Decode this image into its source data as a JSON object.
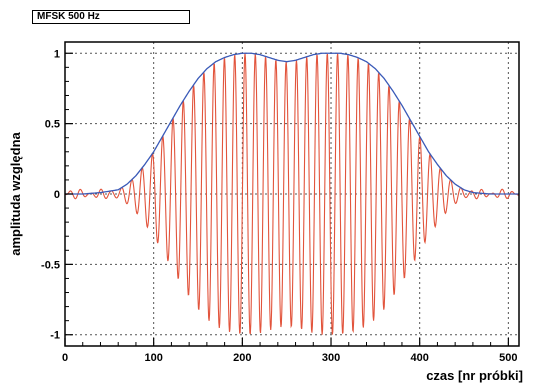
{
  "chart_data": {
    "type": "line",
    "title": "MFSK 500 Hz",
    "xlabel": "czas [nr próbki]",
    "ylabel": "amplituda względna",
    "xlim": [
      0,
      512
    ],
    "ylim": [
      -1.08,
      1.08
    ],
    "x_ticks": [
      0,
      100,
      200,
      300,
      400,
      500
    ],
    "y_ticks": [
      -1,
      -0.5,
      0,
      0.5,
      1
    ],
    "y_tick_labels": [
      "-1",
      "-0.5",
      "0",
      "0.5",
      "1"
    ],
    "grid": true,
    "series": [
      {
        "role": "envelope",
        "color": "#3a5ab8",
        "x": [
          0,
          20,
          40,
          60,
          70,
          80,
          90,
          100,
          110,
          120,
          130,
          140,
          150,
          160,
          170,
          180,
          190,
          200,
          210,
          220,
          230,
          240,
          250,
          260,
          270,
          280,
          290,
          300,
          310,
          320,
          330,
          340,
          350,
          360,
          370,
          380,
          390,
          400,
          410,
          420,
          430,
          440,
          450,
          460,
          480,
          500,
          512
        ],
        "y": [
          0,
          0,
          0.01,
          0.03,
          0.07,
          0.13,
          0.21,
          0.3,
          0.41,
          0.52,
          0.63,
          0.73,
          0.82,
          0.89,
          0.94,
          0.97,
          0.99,
          1.0,
          1.0,
          0.99,
          0.97,
          0.95,
          0.94,
          0.95,
          0.97,
          0.99,
          1.0,
          1.0,
          1.0,
          0.99,
          0.97,
          0.94,
          0.89,
          0.82,
          0.73,
          0.63,
          0.52,
          0.41,
          0.3,
          0.21,
          0.13,
          0.07,
          0.03,
          0.01,
          0,
          0,
          0
        ]
      },
      {
        "role": "signal",
        "color": "#e2543c",
        "period": 11.6,
        "note_cycles": "oscillation under envelope"
      }
    ]
  }
}
